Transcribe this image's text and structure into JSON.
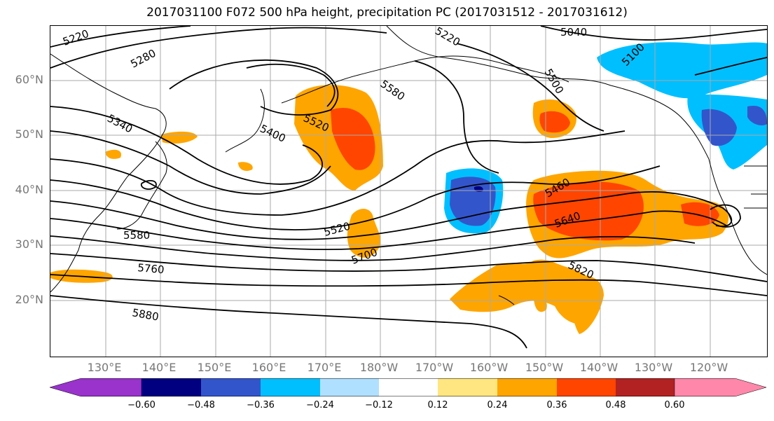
{
  "title": "2017031100 F072 500 hPa height, precipitation PC (2017031512 - 2017031612)",
  "map": {
    "lat_labels": [
      "60°N",
      "50°N",
      "40°N",
      "30°N",
      "20°N"
    ],
    "lon_labels": [
      "130°E",
      "140°E",
      "150°E",
      "160°E",
      "170°E",
      "180°W",
      "170°W",
      "160°W",
      "150°W",
      "140°W",
      "130°W",
      "120°W"
    ],
    "contour_labels": [
      "5220",
      "5280",
      "5340",
      "5400",
      "5520",
      "5580",
      "5220",
      "5040",
      "5100",
      "5500",
      "5460",
      "5640",
      "5520",
      "5700",
      "5580",
      "5760",
      "5820",
      "5880"
    ]
  },
  "colorbar": {
    "ticks": [
      "−0.60",
      "−0.48",
      "−0.36",
      "−0.24",
      "−0.12",
      "0.12",
      "0.24",
      "0.36",
      "0.48",
      "0.60"
    ],
    "colors": [
      "#9933cc",
      "#000080",
      "#3355cc",
      "#00bfff",
      "#b0e0ff",
      "#ffffff",
      "#ffe680",
      "#ffa500",
      "#ff4500",
      "#b22222",
      "#ff88aa"
    ]
  }
}
